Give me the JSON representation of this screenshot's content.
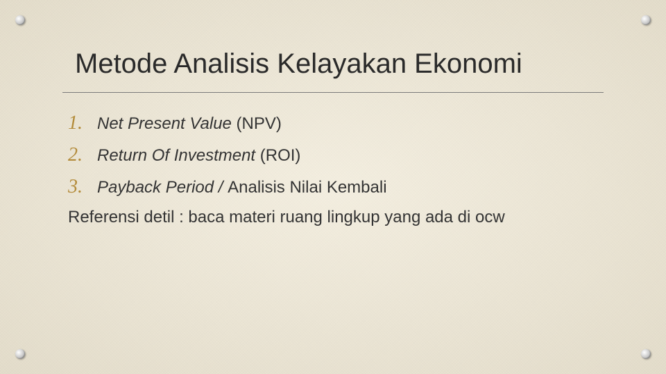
{
  "slide": {
    "title": "Metode Analisis Kelayakan Ekonomi",
    "background_color": "#f0e9d6",
    "title_color": "#2a2a2a",
    "number_color": "#b38b3a",
    "text_color": "#333333",
    "divider_color": "#7a7a7a",
    "corner_highlight": "#ffffff",
    "corner_mid": "#d8d8d8",
    "corner_shadow": "#9a9a9a",
    "title_fontsize": 40,
    "number_fontsize": 28,
    "body_fontsize": 24,
    "items": [
      {
        "number": "1.",
        "text_italic": "Net Present Value",
        "text_plain": " (NPV)"
      },
      {
        "number": "2.",
        "text_italic": "Return Of Investment",
        "text_plain": " (ROI)"
      },
      {
        "number": "3.",
        "text_italic": "Payback Period / ",
        "text_plain": "Analisis Nilai Kembali"
      }
    ],
    "reference": "Referensi detil : baca materi ruang lingkup yang ada di ocw"
  }
}
